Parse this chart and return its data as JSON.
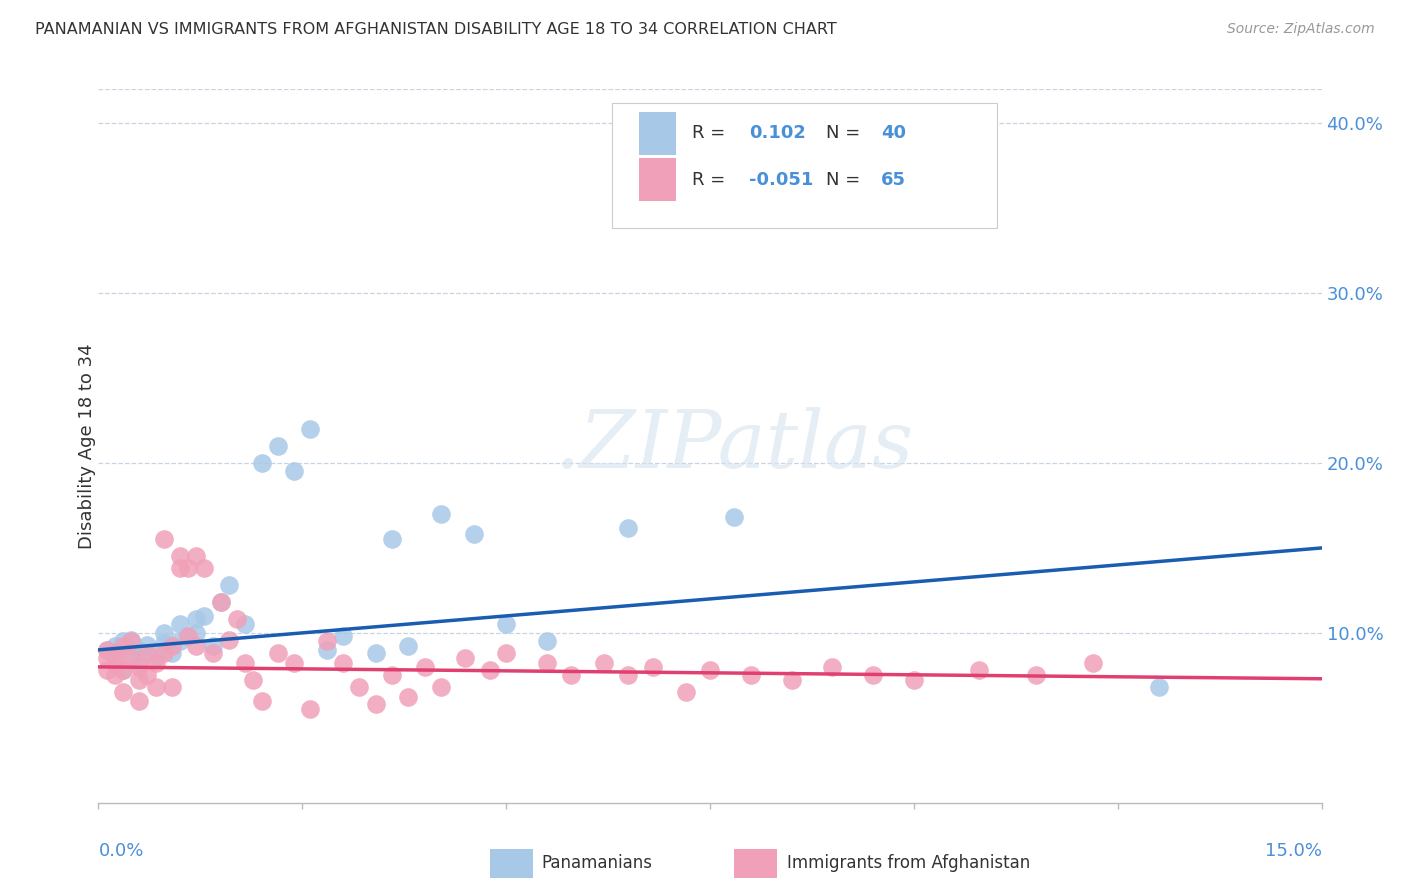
{
  "title": "PANAMANIAN VS IMMIGRANTS FROM AFGHANISTAN DISABILITY AGE 18 TO 34 CORRELATION CHART",
  "source": "Source: ZipAtlas.com",
  "ylabel": "Disability Age 18 to 34",
  "xlim": [
    0.0,
    0.15
  ],
  "ylim": [
    0.0,
    0.42
  ],
  "yticks_right": [
    0.1,
    0.2,
    0.3,
    0.4
  ],
  "blue_color": "#a8c8e8",
  "pink_color": "#f0a0b8",
  "blue_line_color": "#1a5cb0",
  "pink_line_color": "#e04070",
  "legend_R_blue": "0.102",
  "legend_N_blue": "40",
  "legend_R_pink": "-0.051",
  "legend_N_pink": "65",
  "watermark_dot": ".",
  "watermark_zip": "ZIP",
  "watermark_atlas": "atlas",
  "background_color": "#ffffff",
  "grid_color": "#c8d4e4",
  "title_color": "#333333",
  "source_color": "#999999",
  "axis_label_color": "#4a90d9",
  "blue_scatter_x": [
    0.001,
    0.002,
    0.002,
    0.003,
    0.003,
    0.004,
    0.004,
    0.005,
    0.005,
    0.006,
    0.007,
    0.008,
    0.008,
    0.009,
    0.01,
    0.01,
    0.011,
    0.012,
    0.012,
    0.013,
    0.014,
    0.015,
    0.016,
    0.018,
    0.02,
    0.022,
    0.024,
    0.026,
    0.028,
    0.03,
    0.034,
    0.036,
    0.038,
    0.042,
    0.046,
    0.05,
    0.055,
    0.065,
    0.078,
    0.13
  ],
  "blue_scatter_y": [
    0.09,
    0.085,
    0.092,
    0.078,
    0.095,
    0.088,
    0.096,
    0.082,
    0.09,
    0.093,
    0.086,
    0.094,
    0.1,
    0.088,
    0.095,
    0.105,
    0.098,
    0.1,
    0.108,
    0.11,
    0.092,
    0.118,
    0.128,
    0.105,
    0.2,
    0.21,
    0.195,
    0.22,
    0.09,
    0.098,
    0.088,
    0.155,
    0.092,
    0.17,
    0.158,
    0.105,
    0.095,
    0.162,
    0.168,
    0.068
  ],
  "pink_scatter_x": [
    0.001,
    0.001,
    0.001,
    0.002,
    0.002,
    0.002,
    0.003,
    0.003,
    0.003,
    0.004,
    0.004,
    0.005,
    0.005,
    0.005,
    0.006,
    0.006,
    0.007,
    0.007,
    0.008,
    0.008,
    0.009,
    0.009,
    0.01,
    0.01,
    0.011,
    0.011,
    0.012,
    0.012,
    0.013,
    0.014,
    0.015,
    0.016,
    0.017,
    0.018,
    0.019,
    0.02,
    0.022,
    0.024,
    0.026,
    0.028,
    0.03,
    0.032,
    0.034,
    0.036,
    0.038,
    0.04,
    0.042,
    0.045,
    0.048,
    0.05,
    0.055,
    0.058,
    0.062,
    0.065,
    0.068,
    0.072,
    0.075,
    0.08,
    0.085,
    0.09,
    0.095,
    0.1,
    0.108,
    0.115,
    0.122
  ],
  "pink_scatter_y": [
    0.085,
    0.09,
    0.078,
    0.082,
    0.075,
    0.088,
    0.078,
    0.065,
    0.092,
    0.085,
    0.095,
    0.08,
    0.072,
    0.06,
    0.088,
    0.075,
    0.082,
    0.068,
    0.155,
    0.088,
    0.092,
    0.068,
    0.138,
    0.145,
    0.098,
    0.138,
    0.145,
    0.092,
    0.138,
    0.088,
    0.118,
    0.096,
    0.108,
    0.082,
    0.072,
    0.06,
    0.088,
    0.082,
    0.055,
    0.095,
    0.082,
    0.068,
    0.058,
    0.075,
    0.062,
    0.08,
    0.068,
    0.085,
    0.078,
    0.088,
    0.082,
    0.075,
    0.082,
    0.075,
    0.08,
    0.065,
    0.078,
    0.075,
    0.072,
    0.08,
    0.075,
    0.072,
    0.078,
    0.075,
    0.082
  ]
}
